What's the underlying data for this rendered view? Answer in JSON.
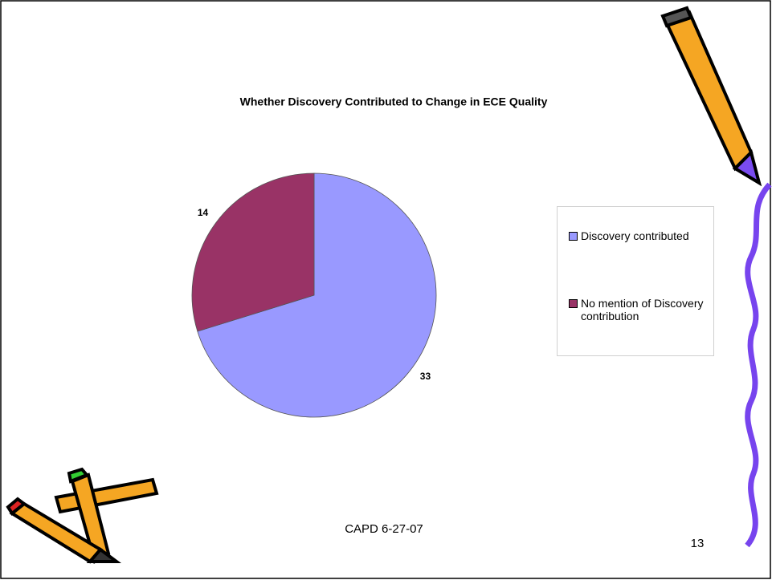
{
  "chart_data": {
    "type": "pie",
    "title": "Whether Discovery Contributed to Change in ECE Quality",
    "categories": [
      "Discovery contributed",
      "No mention of Discovery contribution"
    ],
    "values": [
      33,
      14
    ],
    "colors": [
      "#9999ff",
      "#993366"
    ]
  },
  "footer": "CAPD 6-27-07",
  "page_number": "13"
}
